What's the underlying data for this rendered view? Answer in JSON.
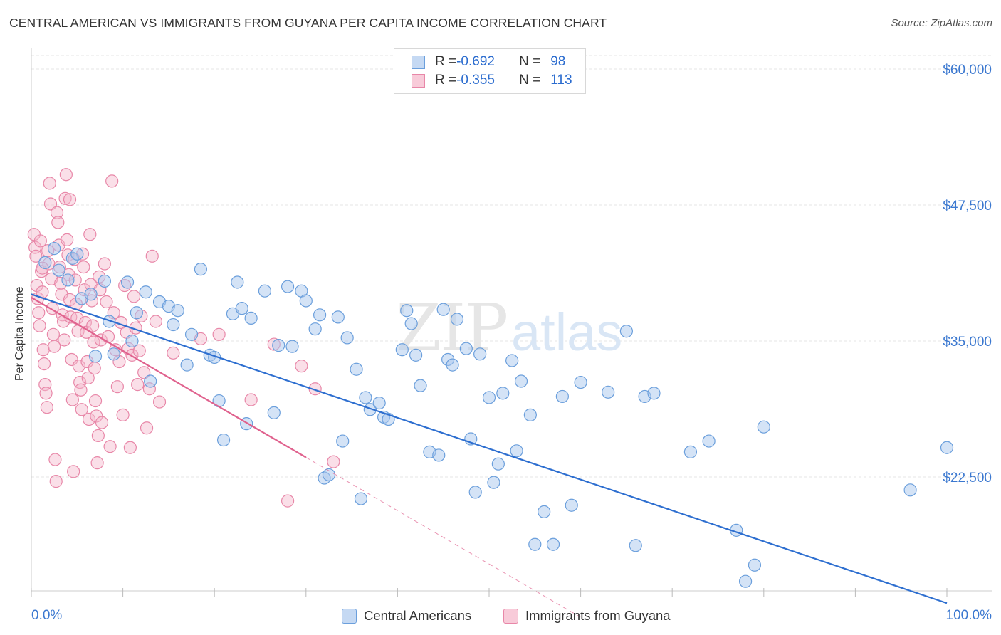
{
  "header": {
    "title": "CENTRAL AMERICAN VS IMMIGRANTS FROM GUYANA PER CAPITA INCOME CORRELATION CHART",
    "source": "Source: ZipAtlas.com"
  },
  "watermark": {
    "zip": "ZIP",
    "atlas": "atlas"
  },
  "legend_top": {
    "rows": [
      {
        "r_label": "R = ",
        "r_value": "-0.692",
        "n_label": "N = ",
        "n_value": "98"
      },
      {
        "r_label": "R = ",
        "r_value": "-0.355",
        "n_label": "N = ",
        "n_value": "113"
      }
    ]
  },
  "legend_bottom": {
    "series1": "Central Americans",
    "series2": "Immigrants from Guyana"
  },
  "colors": {
    "blue_fill": "#aac8ee",
    "blue_stroke": "#6b9fdc",
    "blue_line": "#2e6fd0",
    "pink_fill": "#f5b8cc",
    "pink_stroke": "#e887a8",
    "pink_line": "#e0628e",
    "axis_label": "#3b78d0"
  },
  "chart_data": {
    "type": "scatter",
    "title": "CENTRAL AMERICAN VS IMMIGRANTS FROM GUYANA PER CAPITA INCOME CORRELATION CHART",
    "xlabel": "",
    "ylabel": "Per Capita Income",
    "xlim": [
      0,
      100
    ],
    "ylim": [
      10000,
      63000
    ],
    "x_tick_labels": [
      "0.0%",
      "100.0%"
    ],
    "y_ticks": [
      22500,
      35000,
      47500,
      60000
    ],
    "y_tick_labels": [
      "$22,500",
      "$35,000",
      "$47,500",
      "$60,000"
    ],
    "grid": true,
    "series": [
      {
        "name": "Central Americans",
        "r": -0.692,
        "n": 98,
        "trend": {
          "x": [
            0,
            100
          ],
          "y": [
            39300,
            10900
          ]
        },
        "points": [
          [
            1.5,
            42200
          ],
          [
            2.5,
            43500
          ],
          [
            3.0,
            41500
          ],
          [
            4.0,
            40600
          ],
          [
            4.5,
            42600
          ],
          [
            5.0,
            43000
          ],
          [
            5.5,
            38900
          ],
          [
            6.5,
            39300
          ],
          [
            7.0,
            33600
          ],
          [
            8.0,
            40500
          ],
          [
            8.5,
            36800
          ],
          [
            9.0,
            33800
          ],
          [
            10.5,
            40400
          ],
          [
            11.0,
            35000
          ],
          [
            11.5,
            37600
          ],
          [
            12.5,
            39500
          ],
          [
            13.0,
            31300
          ],
          [
            14.0,
            38600
          ],
          [
            15.0,
            38200
          ],
          [
            15.5,
            36500
          ],
          [
            16.0,
            37800
          ],
          [
            17.0,
            32800
          ],
          [
            17.5,
            35600
          ],
          [
            18.5,
            41600
          ],
          [
            19.5,
            33700
          ],
          [
            20.0,
            33500
          ],
          [
            20.5,
            29500
          ],
          [
            21.0,
            25900
          ],
          [
            22.0,
            37500
          ],
          [
            22.5,
            40400
          ],
          [
            23.0,
            38000
          ],
          [
            23.5,
            27400
          ],
          [
            24.0,
            37100
          ],
          [
            25.5,
            39600
          ],
          [
            26.5,
            28400
          ],
          [
            27.0,
            34600
          ],
          [
            28.0,
            40000
          ],
          [
            28.5,
            34500
          ],
          [
            29.5,
            39600
          ],
          [
            30.0,
            38700
          ],
          [
            31.0,
            36100
          ],
          [
            31.5,
            37400
          ],
          [
            32.0,
            22400
          ],
          [
            32.5,
            22700
          ],
          [
            33.5,
            37200
          ],
          [
            34.0,
            25800
          ],
          [
            34.5,
            35300
          ],
          [
            35.5,
            32400
          ],
          [
            36.0,
            20500
          ],
          [
            36.5,
            29800
          ],
          [
            37.0,
            28700
          ],
          [
            38.0,
            29300
          ],
          [
            38.5,
            28000
          ],
          [
            39.0,
            27800
          ],
          [
            40.5,
            34200
          ],
          [
            41.0,
            37800
          ],
          [
            41.5,
            36600
          ],
          [
            42.0,
            33700
          ],
          [
            42.5,
            30900
          ],
          [
            43.5,
            24800
          ],
          [
            44.5,
            24500
          ],
          [
            45.0,
            37900
          ],
          [
            45.5,
            33300
          ],
          [
            46.0,
            32800
          ],
          [
            46.5,
            37000
          ],
          [
            47.5,
            34300
          ],
          [
            48.0,
            26000
          ],
          [
            48.5,
            21100
          ],
          [
            49.0,
            33800
          ],
          [
            50.0,
            29800
          ],
          [
            50.5,
            22000
          ],
          [
            51.0,
            23700
          ],
          [
            51.5,
            30200
          ],
          [
            52.5,
            33200
          ],
          [
            53.0,
            24900
          ],
          [
            53.5,
            31300
          ],
          [
            54.5,
            28200
          ],
          [
            55.0,
            16300
          ],
          [
            56.0,
            19300
          ],
          [
            57.0,
            16300
          ],
          [
            58.0,
            29900
          ],
          [
            59.0,
            19900
          ],
          [
            60.0,
            31200
          ],
          [
            63.0,
            30300
          ],
          [
            65.0,
            35900
          ],
          [
            66.0,
            16200
          ],
          [
            67.0,
            29900
          ],
          [
            68.0,
            30200
          ],
          [
            72.0,
            24800
          ],
          [
            74.0,
            25800
          ],
          [
            77.0,
            17600
          ],
          [
            78.0,
            12900
          ],
          [
            79.0,
            14400
          ],
          [
            80.0,
            27100
          ],
          [
            100.0,
            25200
          ],
          [
            96.0,
            21300
          ]
        ]
      },
      {
        "name": "Immigrants from Guyana",
        "r": -0.355,
        "n": 113,
        "trend": {
          "x": [
            0,
            30
          ],
          "y": [
            39000,
            24300
          ]
        },
        "trend_dashed": {
          "x": [
            30,
            60
          ],
          "y": [
            24300,
            9600
          ]
        },
        "points": [
          [
            0.3,
            44800
          ],
          [
            0.4,
            43600
          ],
          [
            0.5,
            42800
          ],
          [
            0.6,
            40100
          ],
          [
            0.7,
            38900
          ],
          [
            0.8,
            37600
          ],
          [
            0.9,
            36400
          ],
          [
            1.0,
            44200
          ],
          [
            1.1,
            41400
          ],
          [
            1.2,
            39500
          ],
          [
            1.3,
            34200
          ],
          [
            1.4,
            32900
          ],
          [
            1.5,
            31000
          ],
          [
            1.6,
            30200
          ],
          [
            1.7,
            28900
          ],
          [
            1.8,
            43300
          ],
          [
            1.9,
            42100
          ],
          [
            2.0,
            49500
          ],
          [
            2.1,
            47600
          ],
          [
            2.2,
            40700
          ],
          [
            2.3,
            38000
          ],
          [
            2.4,
            35600
          ],
          [
            2.5,
            34500
          ],
          [
            2.6,
            24100
          ],
          [
            2.7,
            22100
          ],
          [
            2.8,
            46800
          ],
          [
            2.9,
            45900
          ],
          [
            3.0,
            43800
          ],
          [
            3.1,
            41800
          ],
          [
            3.2,
            40300
          ],
          [
            3.3,
            39300
          ],
          [
            3.4,
            37400
          ],
          [
            3.5,
            36800
          ],
          [
            3.6,
            35100
          ],
          [
            3.7,
            48100
          ],
          [
            3.8,
            50300
          ],
          [
            3.9,
            44300
          ],
          [
            4.0,
            42900
          ],
          [
            4.1,
            41100
          ],
          [
            4.2,
            38800
          ],
          [
            4.3,
            37200
          ],
          [
            4.4,
            33300
          ],
          [
            4.5,
            29600
          ],
          [
            4.6,
            23000
          ],
          [
            4.7,
            42500
          ],
          [
            4.8,
            40600
          ],
          [
            4.9,
            38400
          ],
          [
            5.0,
            37100
          ],
          [
            5.1,
            35900
          ],
          [
            5.2,
            32700
          ],
          [
            5.3,
            31200
          ],
          [
            5.4,
            30500
          ],
          [
            5.5,
            28700
          ],
          [
            5.6,
            43000
          ],
          [
            5.7,
            41800
          ],
          [
            5.8,
            39700
          ],
          [
            5.9,
            36700
          ],
          [
            6.0,
            35800
          ],
          [
            6.1,
            33100
          ],
          [
            6.2,
            31600
          ],
          [
            6.3,
            27800
          ],
          [
            6.4,
            44800
          ],
          [
            6.5,
            40200
          ],
          [
            6.6,
            38700
          ],
          [
            6.7,
            36400
          ],
          [
            6.8,
            34900
          ],
          [
            6.9,
            32500
          ],
          [
            7.0,
            29500
          ],
          [
            7.1,
            28100
          ],
          [
            7.2,
            23800
          ],
          [
            7.3,
            26300
          ],
          [
            7.4,
            40900
          ],
          [
            7.5,
            39700
          ],
          [
            7.6,
            35100
          ],
          [
            7.7,
            27500
          ],
          [
            8.0,
            42100
          ],
          [
            8.2,
            38600
          ],
          [
            8.4,
            35400
          ],
          [
            8.6,
            25300
          ],
          [
            8.8,
            49700
          ],
          [
            9.0,
            37600
          ],
          [
            9.2,
            34200
          ],
          [
            9.4,
            30800
          ],
          [
            9.6,
            33100
          ],
          [
            9.8,
            36700
          ],
          [
            10.0,
            28200
          ],
          [
            10.2,
            40100
          ],
          [
            10.4,
            35800
          ],
          [
            10.6,
            34300
          ],
          [
            10.8,
            25200
          ],
          [
            11.0,
            33700
          ],
          [
            11.2,
            39100
          ],
          [
            11.4,
            36200
          ],
          [
            11.6,
            31000
          ],
          [
            11.8,
            34100
          ],
          [
            12.0,
            37300
          ],
          [
            12.3,
            32100
          ],
          [
            12.6,
            27000
          ],
          [
            12.9,
            30600
          ],
          [
            13.2,
            42800
          ],
          [
            13.6,
            36800
          ],
          [
            14.0,
            29400
          ],
          [
            15.5,
            33900
          ],
          [
            18.5,
            35200
          ],
          [
            20.5,
            35600
          ],
          [
            24.0,
            29600
          ],
          [
            26.5,
            34700
          ],
          [
            28.0,
            20300
          ],
          [
            29.5,
            32700
          ],
          [
            31.0,
            30600
          ],
          [
            33.0,
            23900
          ],
          [
            4.2,
            48000
          ],
          [
            1.2,
            41700
          ]
        ]
      }
    ]
  }
}
